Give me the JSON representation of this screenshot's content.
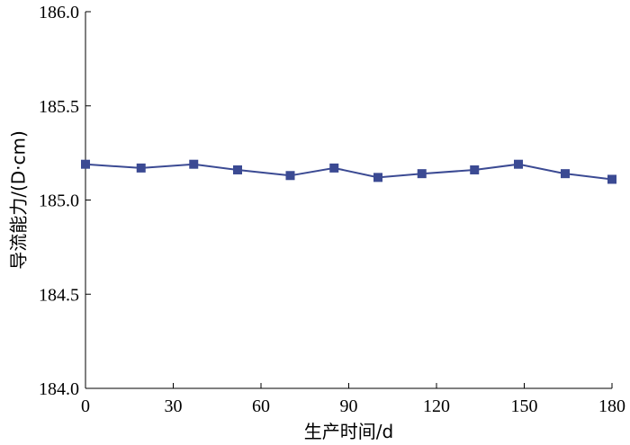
{
  "chart_data": {
    "type": "line",
    "title": "",
    "xlabel": "生产时间/d",
    "ylabel": "导流能力/(D·cm)",
    "xlim": [
      0,
      180
    ],
    "ylim": [
      184.0,
      186.0
    ],
    "x_ticks": [
      0,
      30,
      60,
      90,
      120,
      150,
      180
    ],
    "x_tick_labels": [
      "0",
      "30",
      "60",
      "90",
      "120",
      "150",
      "180"
    ],
    "y_ticks": [
      184.0,
      184.5,
      185.0,
      185.5,
      186.0
    ],
    "y_tick_labels": [
      "184.0",
      "184.5",
      "185.0",
      "185.5",
      "186.0"
    ],
    "grid": false,
    "legend": false,
    "series": [
      {
        "color": "#3b4a93",
        "marker": "square",
        "points": [
          {
            "x": 0,
            "y": 185.19
          },
          {
            "x": 19,
            "y": 185.17
          },
          {
            "x": 37,
            "y": 185.19
          },
          {
            "x": 52,
            "y": 185.16
          },
          {
            "x": 70,
            "y": 185.13
          },
          {
            "x": 85,
            "y": 185.17
          },
          {
            "x": 100,
            "y": 185.12
          },
          {
            "x": 115,
            "y": 185.14
          },
          {
            "x": 133,
            "y": 185.16
          },
          {
            "x": 148,
            "y": 185.19
          },
          {
            "x": 164,
            "y": 185.14
          },
          {
            "x": 180,
            "y": 185.11
          }
        ]
      }
    ]
  }
}
